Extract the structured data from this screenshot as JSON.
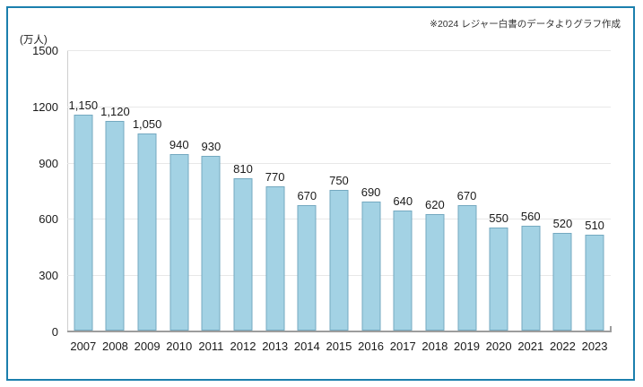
{
  "page": {
    "background": "#ffffff",
    "frame_border_color": "#1b7fad"
  },
  "chart_data": {
    "type": "bar",
    "title": "",
    "unit_label": "(万人)",
    "source_note": "※2024 レジャー白書のデータよりグラフ作成",
    "categories": [
      "2007",
      "2008",
      "2009",
      "2010",
      "2011",
      "2012",
      "2013",
      "2014",
      "2015",
      "2016",
      "2017",
      "2018",
      "2019",
      "2020",
      "2021",
      "2022",
      "2023"
    ],
    "values": [
      1150,
      1120,
      1050,
      940,
      930,
      810,
      770,
      670,
      750,
      690,
      640,
      620,
      670,
      550,
      560,
      520,
      510
    ],
    "value_labels": [
      "1,150",
      "1,120",
      "1,050",
      "940",
      "930",
      "810",
      "770",
      "670",
      "750",
      "690",
      "640",
      "620",
      "670",
      "550",
      "560",
      "520",
      "510"
    ],
    "xlabel": "",
    "ylabel": "(万人)",
    "ylim": [
      0,
      1500
    ],
    "yticks": [
      0,
      300,
      600,
      900,
      1200,
      1500
    ],
    "grid": true,
    "legend": "none",
    "bar_color": "#a3d2e4",
    "bar_border_color": "#74a9c0",
    "gridline_color": "#e8e8e8",
    "axis_color": "#9d9d9d"
  }
}
